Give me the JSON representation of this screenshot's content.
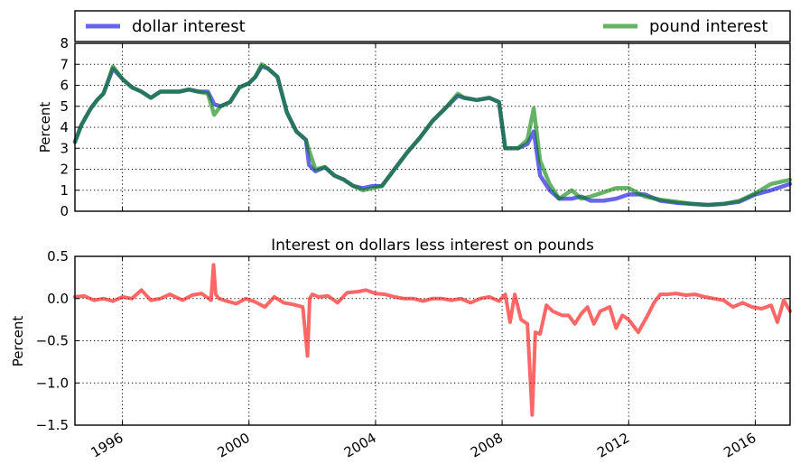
{
  "chart_data": [
    {
      "type": "line",
      "title": "",
      "xlabel": "",
      "ylabel": "Percent",
      "xlim": [
        1994.5,
        2017.1
      ],
      "ylim": [
        0,
        8
      ],
      "yticks": [
        "0",
        "1",
        "2",
        "3",
        "4",
        "5",
        "6",
        "7",
        "8"
      ],
      "xticks": [
        1996,
        2000,
        2004,
        2008,
        2012,
        2016
      ],
      "grid": true,
      "legend": {
        "placement": "top, outside plot, expanded"
      },
      "series": [
        {
          "name": "dollar interest",
          "color": "#0000e0",
          "x": [
            1994.5,
            1994.7,
            1995.0,
            1995.2,
            1995.4,
            1995.5,
            1995.7,
            1996.0,
            1996.3,
            1996.6,
            1996.9,
            1997.2,
            1997.5,
            1997.8,
            1998.1,
            1998.4,
            1998.7,
            1998.9,
            1999.1,
            1999.4,
            1999.7,
            2000.0,
            2000.2,
            2000.4,
            2000.6,
            2000.9,
            2001.2,
            2001.5,
            2001.8,
            2001.9,
            2002.1,
            2002.4,
            2002.7,
            2003.0,
            2003.3,
            2003.6,
            2003.9,
            2004.2,
            2004.6,
            2005.0,
            2005.4,
            2005.8,
            2006.2,
            2006.6,
            2006.8,
            2007.2,
            2007.6,
            2007.9,
            2008.1,
            2008.3,
            2008.5,
            2008.8,
            2009.0,
            2009.2,
            2009.5,
            2009.8,
            2010.2,
            2010.5,
            2010.8,
            2011.2,
            2011.6,
            2012.0,
            2012.5,
            2013.0,
            2013.5,
            2014.0,
            2014.5,
            2015.0,
            2015.5,
            2016.0,
            2016.5,
            2017.1
          ],
          "values": [
            3.3,
            4.1,
            4.9,
            5.3,
            5.6,
            6.0,
            6.8,
            6.3,
            5.9,
            5.7,
            5.4,
            5.7,
            5.7,
            5.7,
            5.8,
            5.7,
            5.7,
            5.1,
            5.0,
            5.2,
            5.9,
            6.1,
            6.4,
            6.9,
            6.8,
            6.4,
            4.7,
            3.8,
            3.4,
            2.2,
            1.9,
            2.1,
            1.7,
            1.5,
            1.2,
            1.1,
            1.2,
            1.2,
            2.0,
            2.8,
            3.5,
            4.3,
            4.9,
            5.5,
            5.4,
            5.3,
            5.4,
            5.2,
            3.0,
            3.0,
            3.0,
            3.2,
            3.8,
            1.7,
            1.0,
            0.6,
            0.6,
            0.7,
            0.5,
            0.5,
            0.6,
            0.8,
            0.8,
            0.5,
            0.4,
            0.35,
            0.3,
            0.35,
            0.45,
            0.8,
            1.0,
            1.3
          ]
        },
        {
          "name": "pound interest",
          "color": "#008000",
          "x": [
            1994.5,
            1994.7,
            1995.0,
            1995.2,
            1995.4,
            1995.5,
            1995.7,
            1996.0,
            1996.3,
            1996.6,
            1996.9,
            1997.2,
            1997.5,
            1997.8,
            1998.1,
            1998.4,
            1998.7,
            1998.9,
            1999.1,
            1999.4,
            1999.7,
            2000.0,
            2000.2,
            2000.4,
            2000.6,
            2000.9,
            2001.2,
            2001.5,
            2001.8,
            2001.9,
            2002.1,
            2002.4,
            2002.7,
            2003.0,
            2003.3,
            2003.6,
            2003.9,
            2004.2,
            2004.6,
            2005.0,
            2005.4,
            2005.8,
            2006.2,
            2006.6,
            2006.8,
            2007.2,
            2007.6,
            2007.9,
            2008.1,
            2008.3,
            2008.5,
            2008.8,
            2009.0,
            2009.2,
            2009.5,
            2009.8,
            2010.2,
            2010.5,
            2010.8,
            2011.2,
            2011.6,
            2012.0,
            2012.5,
            2013.0,
            2013.5,
            2014.0,
            2014.5,
            2015.0,
            2015.5,
            2016.0,
            2016.5,
            2017.1
          ],
          "values": [
            3.3,
            4.1,
            4.9,
            5.3,
            5.6,
            6.0,
            6.9,
            6.3,
            5.9,
            5.7,
            5.4,
            5.7,
            5.7,
            5.7,
            5.8,
            5.7,
            5.6,
            4.6,
            5.0,
            5.2,
            5.9,
            6.1,
            6.4,
            7.0,
            6.8,
            6.4,
            4.7,
            3.8,
            3.4,
            2.9,
            2.0,
            2.1,
            1.7,
            1.5,
            1.2,
            1.0,
            1.1,
            1.2,
            2.0,
            2.8,
            3.5,
            4.3,
            4.9,
            5.6,
            5.4,
            5.3,
            5.4,
            5.2,
            3.0,
            3.0,
            3.0,
            3.4,
            4.9,
            2.4,
            1.3,
            0.6,
            1.0,
            0.6,
            0.7,
            0.9,
            1.1,
            1.1,
            0.7,
            0.55,
            0.45,
            0.35,
            0.3,
            0.35,
            0.5,
            0.85,
            1.3,
            1.5
          ]
        }
      ]
    },
    {
      "type": "line",
      "title": "Interest on dollars less interest on pounds",
      "xlabel": "",
      "ylabel": "Percent",
      "xlim": [
        1994.5,
        2017.1
      ],
      "ylim": [
        -1.5,
        0.5
      ],
      "yticks": [
        "−1.5",
        "−1.0",
        "−0.5",
        "0.0",
        "0.5"
      ],
      "xticks": [
        1996,
        2000,
        2004,
        2008,
        2012,
        2016
      ],
      "grid": true,
      "series": [
        {
          "color": "#ff0000",
          "x": [
            1994.5,
            1994.8,
            1995.1,
            1995.4,
            1995.7,
            1996.0,
            1996.3,
            1996.6,
            1996.9,
            1997.2,
            1997.5,
            1997.9,
            1998.2,
            1998.5,
            1998.8,
            1998.88,
            1998.95,
            1999.05,
            1999.3,
            1999.6,
            1999.9,
            2000.2,
            2000.5,
            2000.8,
            2001.1,
            2001.4,
            2001.7,
            2001.85,
            2001.92,
            2002.0,
            2002.2,
            2002.5,
            2002.8,
            2003.1,
            2003.4,
            2003.7,
            2004.0,
            2004.3,
            2004.6,
            2004.9,
            2005.2,
            2005.5,
            2005.8,
            2006.1,
            2006.4,
            2006.7,
            2007.0,
            2007.3,
            2007.6,
            2007.9,
            2008.1,
            2008.25,
            2008.4,
            2008.6,
            2008.8,
            2008.95,
            2009.05,
            2009.2,
            2009.4,
            2009.6,
            2009.9,
            2010.1,
            2010.3,
            2010.5,
            2010.7,
            2010.9,
            2011.1,
            2011.4,
            2011.6,
            2011.8,
            2012.0,
            2012.3,
            2012.6,
            2012.8,
            2013.0,
            2013.2,
            2013.5,
            2013.8,
            2014.1,
            2014.4,
            2014.7,
            2015.0,
            2015.3,
            2015.6,
            2015.9,
            2016.2,
            2016.5,
            2016.7,
            2016.9,
            2017.1
          ],
          "values": [
            0.02,
            0.03,
            -0.02,
            0.0,
            -0.03,
            0.02,
            0.0,
            0.1,
            -0.02,
            0.0,
            0.05,
            -0.02,
            0.04,
            0.06,
            -0.02,
            0.4,
            0.05,
            0.0,
            -0.03,
            -0.06,
            0.0,
            -0.04,
            -0.1,
            0.02,
            -0.05,
            -0.07,
            -0.1,
            -0.68,
            0.0,
            0.05,
            0.02,
            0.03,
            -0.05,
            0.07,
            0.08,
            0.1,
            0.06,
            0.05,
            0.02,
            0.0,
            0.0,
            -0.03,
            0.0,
            0.0,
            -0.02,
            0.0,
            -0.05,
            0.0,
            0.02,
            -0.03,
            0.05,
            -0.28,
            0.05,
            -0.25,
            -0.3,
            -1.38,
            -0.4,
            -0.42,
            -0.08,
            -0.15,
            -0.2,
            -0.2,
            -0.3,
            -0.18,
            -0.1,
            -0.3,
            -0.15,
            -0.1,
            -0.35,
            -0.2,
            -0.25,
            -0.4,
            -0.2,
            -0.05,
            0.05,
            0.05,
            0.06,
            0.04,
            0.05,
            0.02,
            0.0,
            -0.02,
            -0.1,
            -0.05,
            -0.1,
            -0.12,
            -0.08,
            -0.28,
            -0.02,
            -0.15
          ]
        }
      ]
    }
  ]
}
